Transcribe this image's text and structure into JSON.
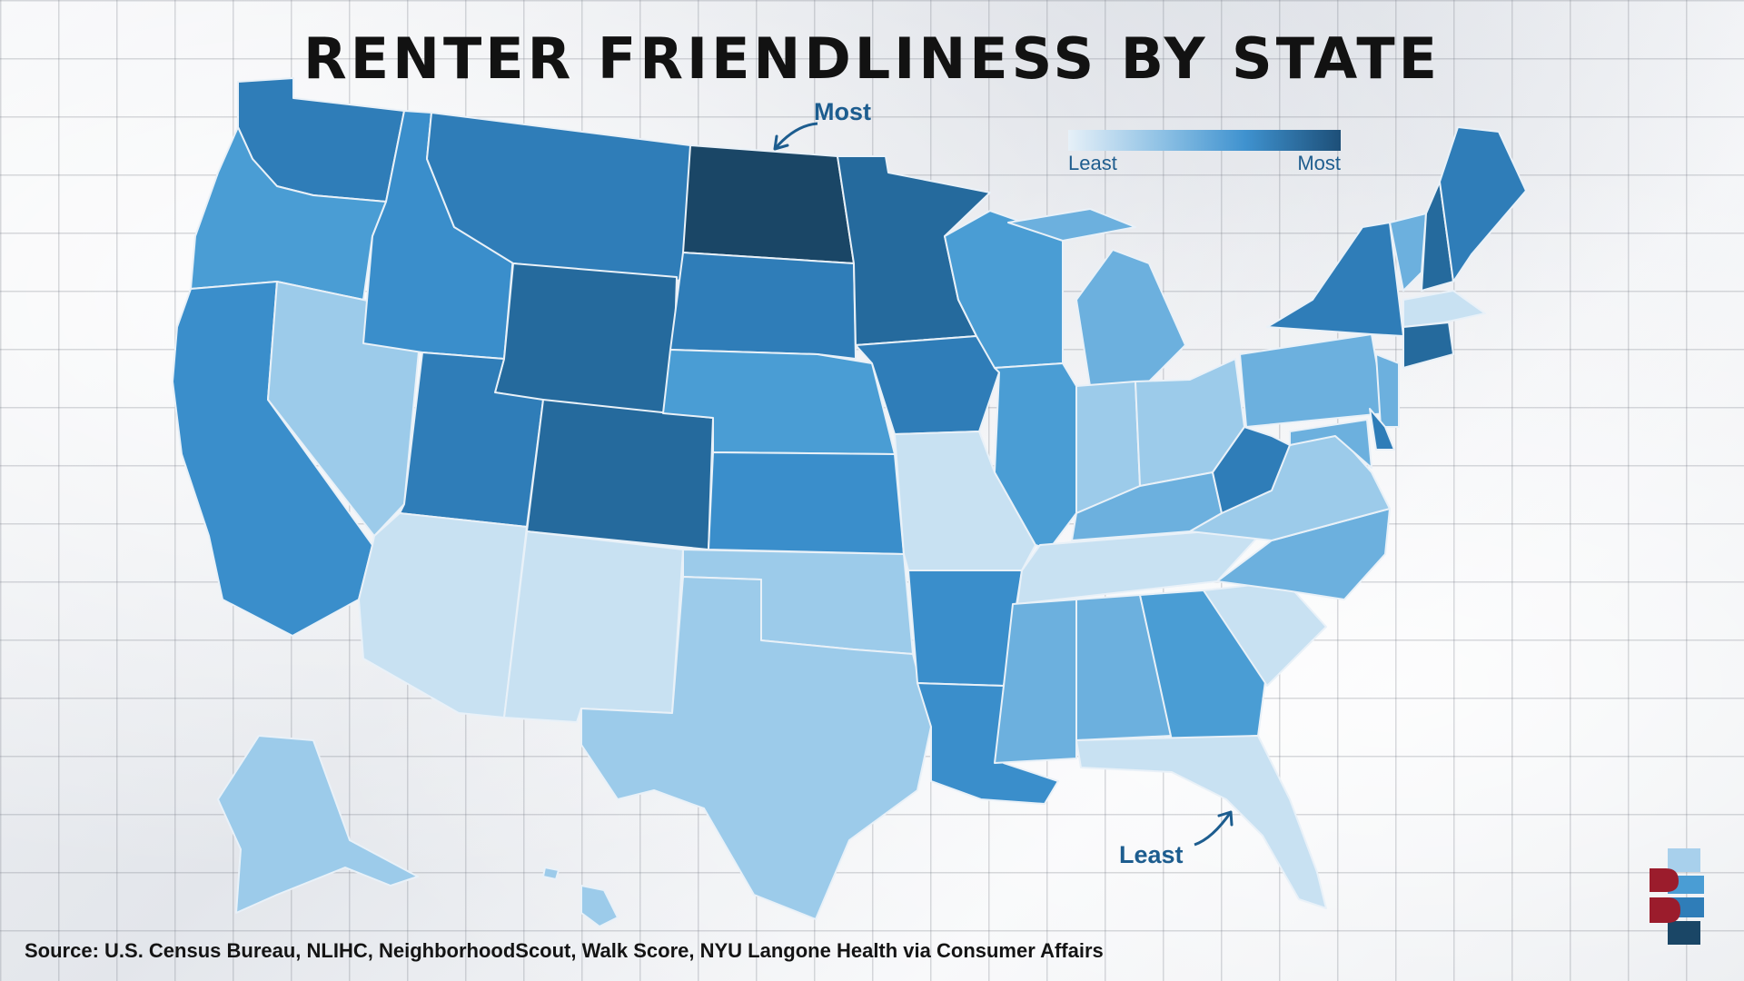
{
  "title": "RENTER FRIENDLINESS BY STATE",
  "legend": {
    "low_label": "Least",
    "high_label": "Most"
  },
  "callouts": {
    "most": "Most",
    "least": "Least"
  },
  "source": "Source: U.S. Census Bureau, NLIHC, NeighborhoodScout, Walk Score, NYU Langone Health via Consumer Affairs",
  "scale_colors": [
    "#c8e1f2",
    "#9ccbea",
    "#6cb0de",
    "#4a9dd4",
    "#3a8ecb",
    "#2f7db8",
    "#256a9d",
    "#1a4666"
  ],
  "states": [
    {
      "id": "WA",
      "level": 5
    },
    {
      "id": "OR",
      "level": 3
    },
    {
      "id": "CA",
      "level": 4
    },
    {
      "id": "ID",
      "level": 4
    },
    {
      "id": "NV",
      "level": 1
    },
    {
      "id": "MT",
      "level": 5
    },
    {
      "id": "WY",
      "level": 6
    },
    {
      "id": "UT",
      "level": 5
    },
    {
      "id": "AZ",
      "level": 0
    },
    {
      "id": "CO",
      "level": 6
    },
    {
      "id": "NM",
      "level": 0
    },
    {
      "id": "ND",
      "level": 7
    },
    {
      "id": "SD",
      "level": 5
    },
    {
      "id": "NE",
      "level": 3
    },
    {
      "id": "KS",
      "level": 4
    },
    {
      "id": "OK",
      "level": 1
    },
    {
      "id": "TX",
      "level": 1
    },
    {
      "id": "MN",
      "level": 6
    },
    {
      "id": "IA",
      "level": 5
    },
    {
      "id": "MO",
      "level": 0
    },
    {
      "id": "AR",
      "level": 4
    },
    {
      "id": "LA",
      "level": 4
    },
    {
      "id": "WI",
      "level": 3
    },
    {
      "id": "IL",
      "level": 3
    },
    {
      "id": "MI",
      "level": 2
    },
    {
      "id": "IN",
      "level": 1
    },
    {
      "id": "OH",
      "level": 1
    },
    {
      "id": "KY",
      "level": 2
    },
    {
      "id": "TN",
      "level": 0
    },
    {
      "id": "MS",
      "level": 2
    },
    {
      "id": "AL",
      "level": 2
    },
    {
      "id": "GA",
      "level": 3
    },
    {
      "id": "FL",
      "level": 0
    },
    {
      "id": "SC",
      "level": 0
    },
    {
      "id": "NC",
      "level": 2
    },
    {
      "id": "VA",
      "level": 1
    },
    {
      "id": "WV",
      "level": 5
    },
    {
      "id": "PA",
      "level": 2
    },
    {
      "id": "NY",
      "level": 5
    },
    {
      "id": "VT",
      "level": 2
    },
    {
      "id": "NH",
      "level": 6
    },
    {
      "id": "ME",
      "level": 5
    },
    {
      "id": "MA",
      "level": 0
    },
    {
      "id": "CT",
      "level": 6
    },
    {
      "id": "NJ",
      "level": 2
    },
    {
      "id": "DE",
      "level": 5
    },
    {
      "id": "MD",
      "level": 2
    },
    {
      "id": "AK",
      "level": 1
    },
    {
      "id": "HI",
      "level": 1
    }
  ]
}
